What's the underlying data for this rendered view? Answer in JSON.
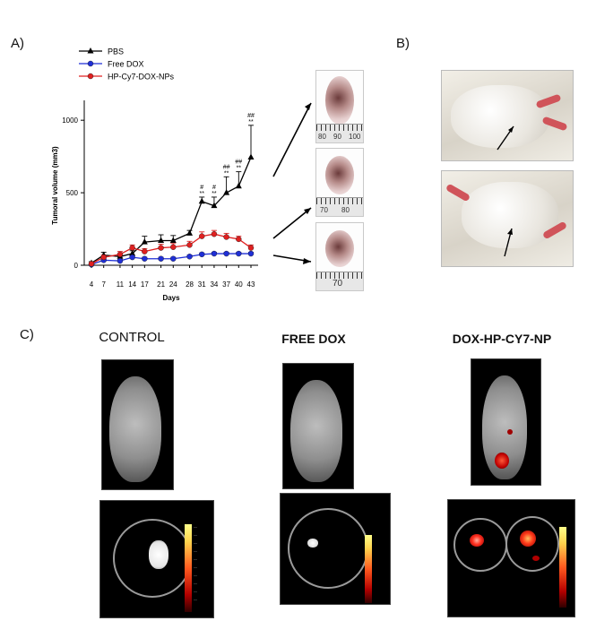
{
  "panels": {
    "a": "A)",
    "b": "B)",
    "c": "C)"
  },
  "chart_data": {
    "type": "line",
    "xlabel": "Days",
    "ylabel": "Tumoral volume (mm3)",
    "x": [
      4,
      7,
      11,
      14,
      17,
      21,
      24,
      28,
      31,
      34,
      37,
      40,
      43
    ],
    "yticks": [
      0,
      500,
      1000
    ],
    "ylim": [
      0,
      1100
    ],
    "legend_position": "top-left",
    "series": [
      {
        "name": "PBS",
        "color": "#000000",
        "marker": "triangle",
        "values": [
          15,
          70,
          60,
          80,
          160,
          170,
          170,
          220,
          440,
          410,
          500,
          545,
          745
        ],
        "errors": [
          10,
          20,
          15,
          20,
          40,
          40,
          35,
          20,
          30,
          60,
          110,
          100,
          220
        ]
      },
      {
        "name": "Free DOX",
        "color": "#1f2fd6",
        "marker": "circle",
        "values": [
          5,
          35,
          30,
          55,
          45,
          45,
          45,
          60,
          75,
          80,
          80,
          80,
          80
        ],
        "errors": [
          5,
          10,
          10,
          10,
          10,
          10,
          10,
          10,
          10,
          10,
          10,
          10,
          10
        ]
      },
      {
        "name": "HP-Cy7-DOX-NPs",
        "color": "#e02020",
        "marker": "circle",
        "values": [
          10,
          55,
          75,
          120,
          95,
          120,
          125,
          140,
          200,
          215,
          195,
          180,
          120
        ],
        "errors": [
          5,
          15,
          20,
          20,
          20,
          25,
          25,
          25,
          30,
          25,
          25,
          20,
          20
        ]
      }
    ],
    "annotations": [
      {
        "day": 31,
        "text": "**",
        "row": 1
      },
      {
        "day": 31,
        "text": "#",
        "row": 2
      },
      {
        "day": 34,
        "text": "**",
        "row": 1
      },
      {
        "day": 34,
        "text": "#",
        "row": 2
      },
      {
        "day": 37,
        "text": "**",
        "row": 1
      },
      {
        "day": 37,
        "text": "##",
        "row": 2
      },
      {
        "day": 40,
        "text": "**",
        "row": 1
      },
      {
        "day": 40,
        "text": "##",
        "row": 2
      },
      {
        "day": 43,
        "text": "**",
        "row": 1
      },
      {
        "day": 43,
        "text": "##",
        "row": 2
      }
    ]
  },
  "rulers": {
    "top": [
      "80",
      "90",
      "100"
    ],
    "middle": [
      "70",
      "80"
    ],
    "bottom": [
      "70"
    ]
  },
  "imaging": {
    "columns": [
      "CONTROL",
      "FREE DOX",
      "DOX-HP-CY7-NP"
    ]
  }
}
